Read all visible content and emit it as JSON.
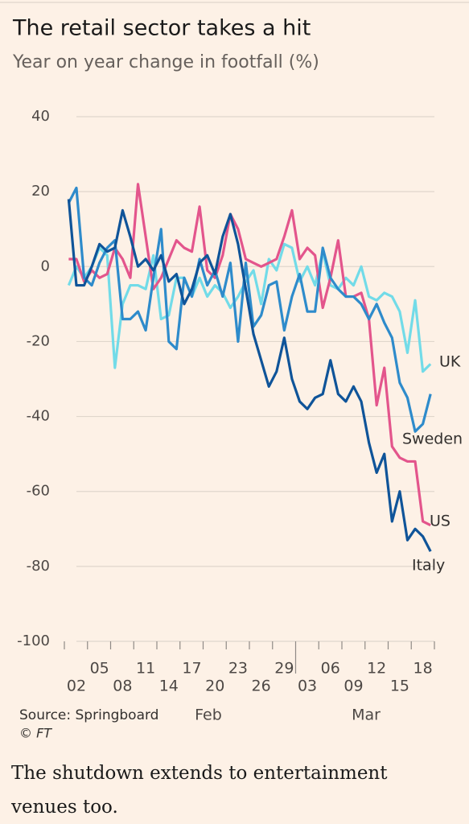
{
  "chart_data": {
    "type": "line",
    "title": "The retail sector takes a hit",
    "subtitle": "Year on year change in footfall (%)",
    "source": "Source: Springboard",
    "credit": "© FT",
    "categories": [
      null,
      "02",
      null,
      null,
      "05",
      null,
      null,
      "08",
      null,
      null,
      "11",
      null,
      null,
      "14",
      null,
      null,
      "17",
      null,
      null,
      "20",
      null,
      null,
      "23",
      null,
      null,
      "26",
      null,
      null,
      "29",
      null,
      null,
      "03",
      null,
      null,
      "06",
      null,
      null,
      "09",
      null,
      null,
      "12",
      null,
      null,
      "15",
      null,
      null,
      "18",
      null
    ],
    "month_labels": [
      "Feb",
      "Mar"
    ],
    "ylim": [
      -100,
      40
    ],
    "yticks": [
      40,
      20,
      0,
      -20,
      -40,
      -60,
      -80,
      -100
    ],
    "grid": true,
    "series": [
      {
        "name": "Italy",
        "color": "#0f5499",
        "values": [
          18,
          -5,
          -5,
          0,
          6,
          4,
          5,
          15,
          8,
          0,
          2,
          -1,
          3,
          -4,
          -2,
          -10,
          -6,
          1,
          3,
          -2,
          8,
          14,
          6,
          -6,
          -18,
          -25,
          -32,
          -28,
          -19,
          -30,
          -36,
          -38,
          -35,
          -34,
          -25,
          -34,
          -36,
          -32,
          -36,
          -47,
          -55,
          -50,
          -68,
          -60,
          -73,
          -70,
          -72,
          -76
        ]
      },
      {
        "name": "Sweden",
        "color": "#2e8bcb",
        "values": [
          17,
          21,
          -3,
          -5,
          1,
          5,
          7,
          -14,
          -14,
          -12,
          -17,
          -3,
          10,
          -20,
          -22,
          -3,
          -8,
          2,
          -5,
          -1,
          -8,
          1,
          -20,
          1,
          -16,
          -13,
          -5,
          -4,
          -17,
          -8,
          -2,
          -12,
          -12,
          5,
          -3,
          -6,
          -8,
          -8,
          -10,
          -14,
          -10,
          -15,
          -19,
          -31,
          -35,
          -44,
          -42,
          -34
        ]
      },
      {
        "name": "US",
        "color": "#e3558c",
        "values": [
          2,
          2,
          -4,
          -1,
          -3,
          -2,
          5,
          2,
          -3,
          22,
          8,
          -6,
          -3,
          2,
          7,
          5,
          4,
          16,
          -1,
          -3,
          3,
          14,
          10,
          2,
          1,
          0,
          1,
          2,
          8,
          15,
          2,
          5,
          3,
          -11,
          -3,
          7,
          -8,
          -8,
          -7,
          -14,
          -37,
          -27,
          -48,
          -51,
          -52,
          -52,
          -68,
          -69
        ]
      },
      {
        "name": "UK",
        "color": "#72dbe8",
        "values": [
          -5,
          0,
          -3,
          0,
          5,
          3,
          -27,
          -10,
          -5,
          -5,
          -6,
          3,
          -14,
          -13,
          -3,
          -3,
          -8,
          -3,
          -8,
          -5,
          -7,
          -11,
          -8,
          -4,
          -1,
          -10,
          2,
          -1,
          6,
          5,
          -4,
          0,
          -5,
          4,
          -5,
          -6,
          -3,
          -5,
          0,
          -8,
          -9,
          -7,
          -8,
          -12,
          -23,
          -9,
          -28,
          -26
        ]
      }
    ]
  },
  "body_text": "The shutdown extends to entertainment venues too."
}
